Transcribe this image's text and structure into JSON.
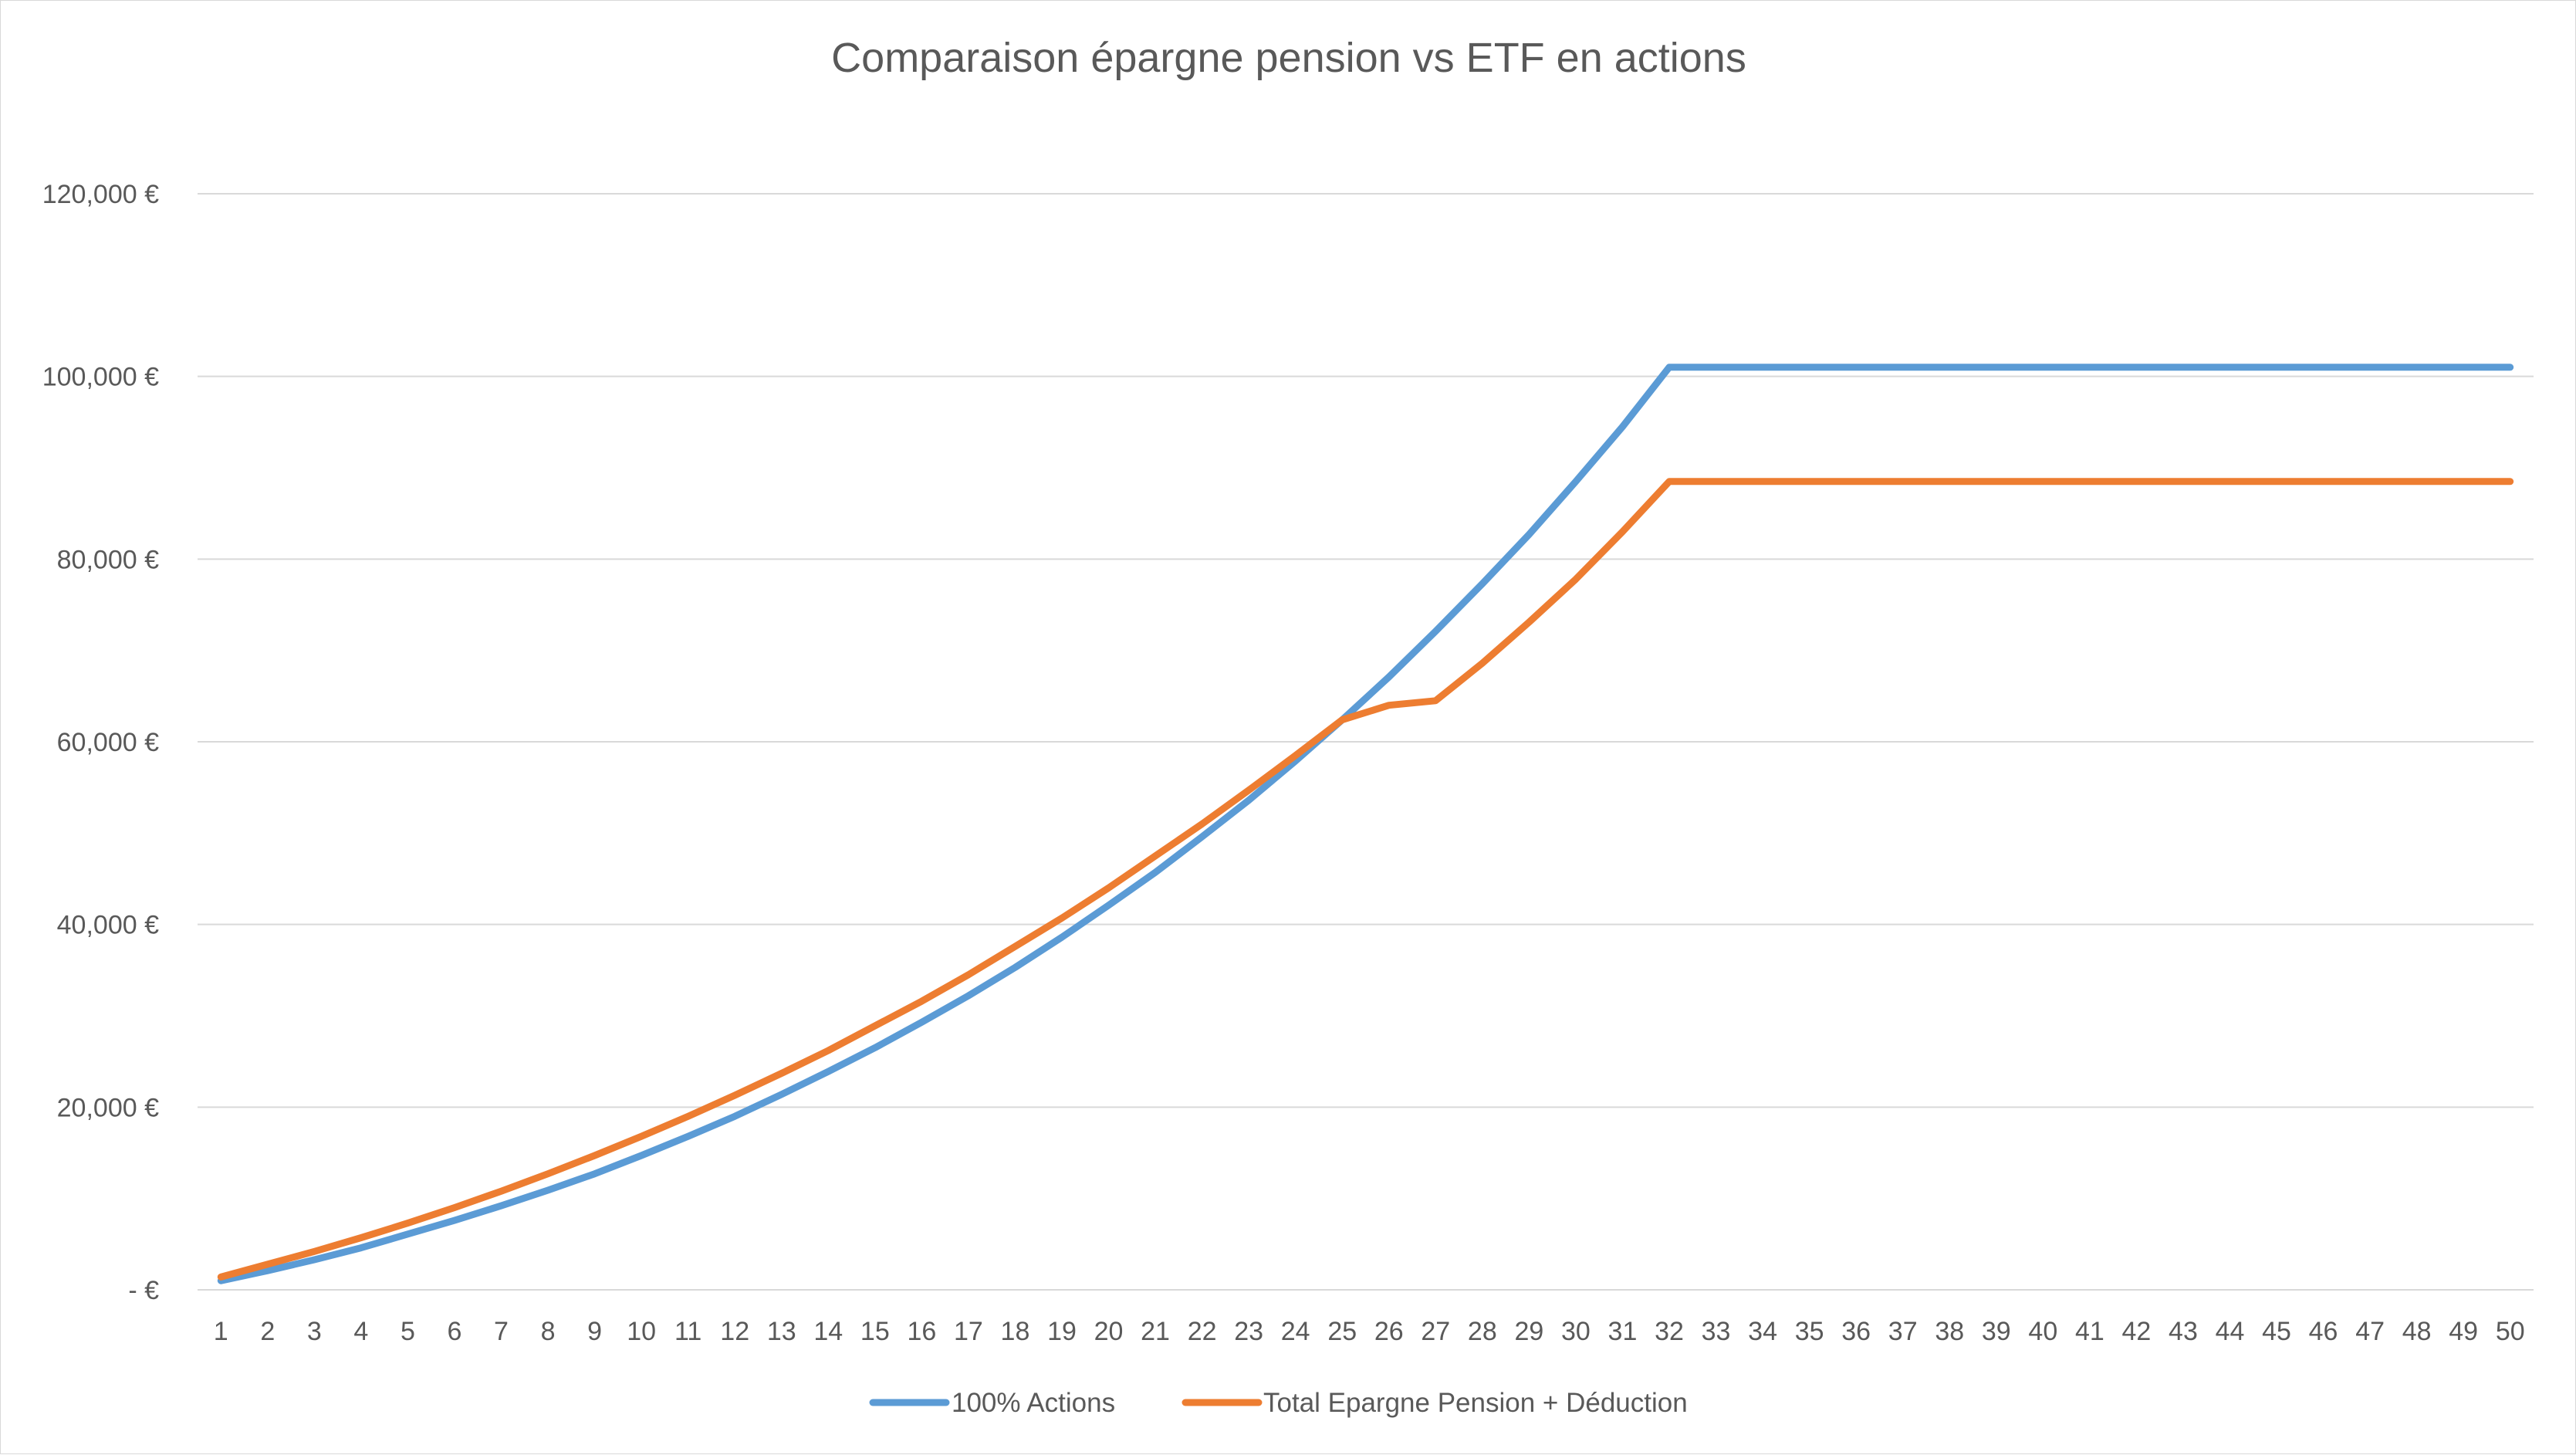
{
  "chart_data": {
    "type": "line",
    "title": "Comparaison épargne pension vs ETF en actions",
    "xlabel": "",
    "ylabel": "",
    "categories": [
      "1",
      "2",
      "3",
      "4",
      "5",
      "6",
      "7",
      "8",
      "9",
      "10",
      "11",
      "12",
      "13",
      "14",
      "15",
      "16",
      "17",
      "18",
      "19",
      "20",
      "21",
      "22",
      "23",
      "24",
      "25",
      "26",
      "27",
      "28",
      "29",
      "30",
      "31",
      "32",
      "33",
      "34",
      "35",
      "36",
      "37",
      "38",
      "39",
      "40",
      "41",
      "42",
      "43",
      "44",
      "45",
      "46",
      "47",
      "48",
      "49",
      "50"
    ],
    "y_ticks": [
      0,
      20000,
      40000,
      60000,
      80000,
      100000,
      120000
    ],
    "y_tick_labels": [
      "-  €",
      "20,000 €",
      "40,000 €",
      "60,000 €",
      "80,000 €",
      "100,000 €",
      "120,000 €"
    ],
    "ylim": [
      0,
      120000
    ],
    "grid": true,
    "legend_position": "bottom",
    "series": [
      {
        "name": "100% Actions",
        "color": "#5b9bd5",
        "values": [
          1000,
          2100,
          3300,
          4600,
          6100,
          7600,
          9200,
          10900,
          12700,
          14700,
          16800,
          19000,
          21400,
          23900,
          26500,
          29300,
          32200,
          35300,
          38600,
          42100,
          45700,
          49600,
          53600,
          57900,
          62400,
          67100,
          72100,
          77300,
          82700,
          88500,
          94500,
          101000,
          101000,
          101000,
          101000,
          101000,
          101000,
          101000,
          101000,
          101000,
          101000,
          101000,
          101000,
          101000,
          101000,
          101000,
          101000,
          101000,
          101000,
          101000
        ]
      },
      {
        "name": "Total Epargne Pension + Déduction",
        "color": "#ed7d31",
        "values": [
          1400,
          2800,
          4200,
          5700,
          7300,
          9000,
          10800,
          12700,
          14700,
          16800,
          19000,
          21300,
          23700,
          26200,
          28900,
          31600,
          34500,
          37600,
          40700,
          44000,
          47500,
          51000,
          54700,
          58500,
          62400,
          64000,
          64500,
          68600,
          73100,
          77800,
          83000,
          88500,
          88500,
          88500,
          88500,
          88500,
          88500,
          88500,
          88500,
          88500,
          88500,
          88500,
          88500,
          88500,
          88500,
          88500,
          88500,
          88500,
          88500,
          88500
        ]
      }
    ]
  }
}
